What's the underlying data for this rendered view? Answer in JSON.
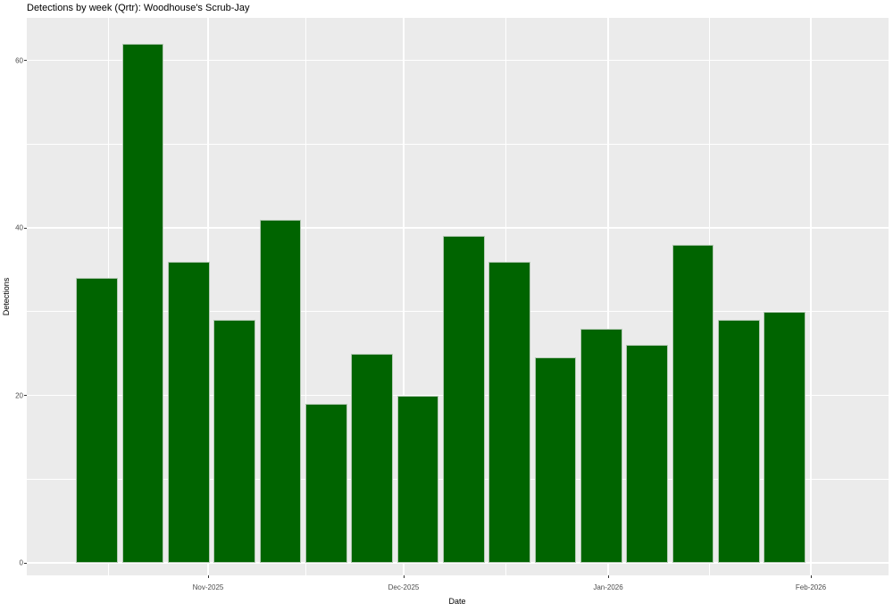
{
  "chart_data": {
    "type": "bar",
    "title": "Detections by week (Qrtr): Woodhouse's Scrub-Jay",
    "xlabel": "Date",
    "ylabel": "Detections",
    "values": [
      34,
      62,
      36,
      29,
      41,
      19,
      25,
      20,
      39,
      36,
      24.5,
      28,
      26,
      38,
      29,
      30
    ],
    "n_bars": 16,
    "x_tick_labels": [
      "Nov-2025",
      "Dec-2025",
      "Jan-2026",
      "Feb-2026"
    ],
    "y_tick_labels": [
      "0",
      "20",
      "40",
      "60"
    ],
    "y_ticks": [
      0,
      20,
      40,
      60
    ],
    "y_minor_ticks": [
      10,
      30,
      50
    ],
    "ylim": [
      0,
      65
    ],
    "grid": "major-and-minor, white on gray panel",
    "legend_position": "none",
    "bar_fill": "#006400",
    "bar_stroke": "#b4cab4",
    "panel_background": "#ebebeb",
    "gridline_color": "#ffffff",
    "tick_label_color": "#4d4d4d",
    "axis_title_color": "#000000",
    "title_color": "#000000",
    "tick_mark_color": "#333333"
  }
}
